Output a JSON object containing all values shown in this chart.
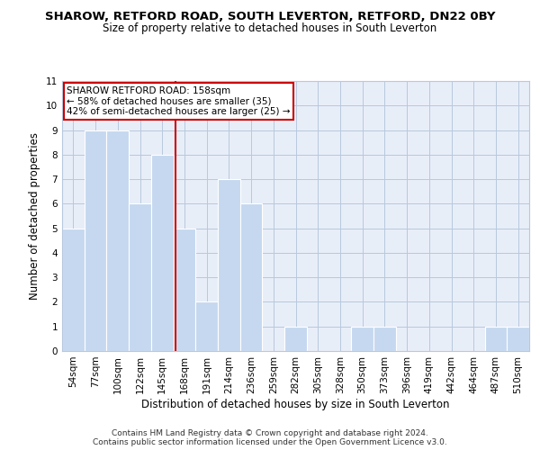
{
  "title": "SHAROW, RETFORD ROAD, SOUTH LEVERTON, RETFORD, DN22 0BY",
  "subtitle": "Size of property relative to detached houses in South Leverton",
  "xlabel": "Distribution of detached houses by size in South Leverton",
  "ylabel": "Number of detached properties",
  "categories": [
    "54sqm",
    "77sqm",
    "100sqm",
    "122sqm",
    "145sqm",
    "168sqm",
    "191sqm",
    "214sqm",
    "236sqm",
    "259sqm",
    "282sqm",
    "305sqm",
    "328sqm",
    "350sqm",
    "373sqm",
    "396sqm",
    "419sqm",
    "442sqm",
    "464sqm",
    "487sqm",
    "510sqm"
  ],
  "values": [
    5,
    9,
    9,
    6,
    8,
    5,
    2,
    7,
    6,
    0,
    1,
    0,
    0,
    1,
    1,
    0,
    0,
    0,
    0,
    1,
    1
  ],
  "bar_color": "#c5d8f0",
  "vline_x": 4.6,
  "vline_color": "#cc0000",
  "ylim": [
    0,
    11
  ],
  "yticks": [
    0,
    1,
    2,
    3,
    4,
    5,
    6,
    7,
    8,
    9,
    10,
    11
  ],
  "annotation_text": "SHAROW RETFORD ROAD: 158sqm\n← 58% of detached houses are smaller (35)\n42% of semi-detached houses are larger (25) →",
  "annotation_box_color": "#ffffff",
  "annotation_box_edge": "#cc0000",
  "footer_line1": "Contains HM Land Registry data © Crown copyright and database right 2024.",
  "footer_line2": "Contains public sector information licensed under the Open Government Licence v3.0.",
  "title_fontsize": 9.5,
  "subtitle_fontsize": 8.5,
  "axis_label_fontsize": 8.5,
  "tick_fontsize": 7.5,
  "annotation_fontsize": 7.5,
  "footer_fontsize": 6.5,
  "background_color": "#e8eef8",
  "grid_color": "#b8c8de"
}
